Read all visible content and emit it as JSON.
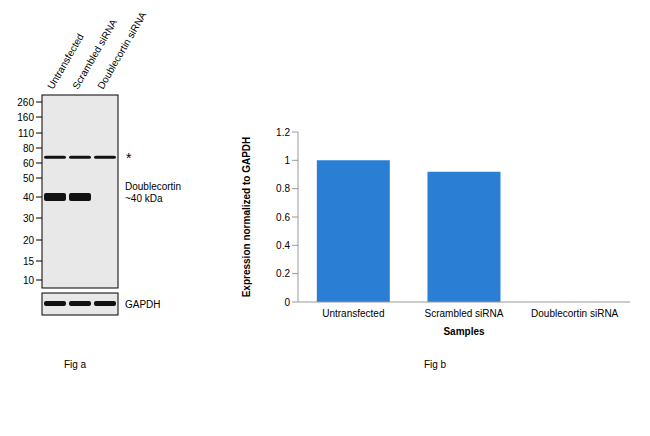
{
  "chart_data": {
    "type": "bar",
    "x_label": "Samples",
    "y_label": "Expression  normalized to GAPDH",
    "categories": [
      "Untransfected",
      "Scrambled siRNA",
      "Doublecortin siRNA"
    ],
    "values": [
      1.0,
      0.92,
      0
    ],
    "color": "#2a7fd4",
    "ylim": [
      0,
      1.2
    ],
    "yticks": [
      0,
      0.2,
      0.4,
      0.6,
      0.8,
      1,
      1.2
    ],
    "grid": false
  },
  "blot": {
    "lanes": [
      "Untransfected",
      "Scrambled siRNA",
      "Doublecortin siRNA"
    ],
    "markers": [
      260,
      160,
      110,
      80,
      60,
      50,
      40,
      30,
      20,
      15,
      10
    ],
    "bands": [
      {
        "label": "*",
        "kda": 67,
        "present": [
          true,
          true,
          true
        ]
      },
      {
        "label": "Doublecortin",
        "size_label": "~40 kDa",
        "kda": 40,
        "present": [
          true,
          true,
          false
        ]
      }
    ],
    "loading_control": "GAPDH"
  },
  "captions": [
    "Fig a",
    "Fig b"
  ]
}
